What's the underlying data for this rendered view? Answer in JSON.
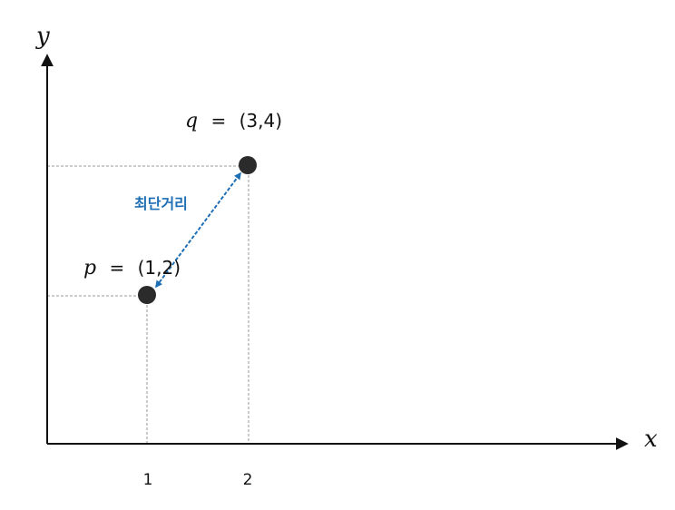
{
  "axes": {
    "x_label": "x",
    "y_label": "y"
  },
  "ticks": {
    "x": [
      "1",
      "2"
    ]
  },
  "points": {
    "p": {
      "name": "p",
      "equals": "=",
      "coords": "(1,2)"
    },
    "q": {
      "name": "q",
      "equals": "=",
      "coords": "(3,4)"
    }
  },
  "distance": {
    "label": "최단거리"
  },
  "colors": {
    "axis": "#111111",
    "guide": "#9a9a9a",
    "point": "#2b2b2b",
    "distance": "#1f6fb5"
  }
}
